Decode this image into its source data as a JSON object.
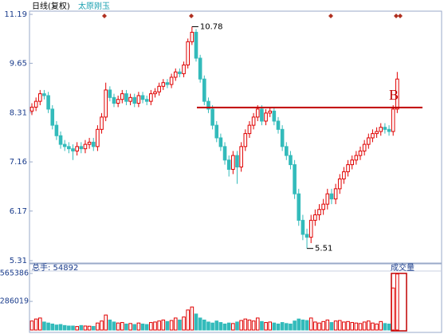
{
  "chart_data": [
    {
      "type": "candlestick",
      "title": "日线(复权)",
      "subtitle": "太原刚玉",
      "log_scale": true,
      "grid": false,
      "ylim": [
        5.31,
        11.19
      ],
      "yticks": [
        5.31,
        6.17,
        7.16,
        8.31,
        9.65,
        11.19
      ],
      "up_color": "#e00000",
      "down_color": "#33bbbb",
      "open": [
        8.35,
        8.45,
        8.6,
        8.8,
        8.75,
        8.4,
        8,
        7.75,
        7.55,
        7.5,
        7.45,
        7.4,
        7.5,
        7.45,
        7.55,
        7.6,
        7.5,
        7.9,
        8.2,
        8.9,
        8.7,
        8.55,
        8.65,
        8.8,
        8.6,
        8.7,
        8.55,
        8.75,
        8.65,
        8.6,
        8.8,
        8.85,
        9,
        9.1,
        9.05,
        9.25,
        9.4,
        9.35,
        9.6,
        10.3,
        10.6,
        9.8,
        9.2,
        8.6,
        8.4,
        8,
        7.7,
        7.5,
        7.2,
        7,
        7.3,
        7.05,
        7.5,
        7.8,
        8,
        8.2,
        8.4,
        8.1,
        8.3,
        8.35,
        8.1,
        7.9,
        7.5,
        7.3,
        7.1,
        6.5,
        6,
        5.75,
        5.7,
        6,
        6.1,
        6.2,
        6.3,
        6.5,
        6.4,
        6.6,
        6.8,
        6.95,
        7.1,
        7.2,
        7.3,
        7.4,
        7.55,
        7.7,
        7.8,
        7.85,
        7.95,
        7.9,
        7.85,
        8.4
      ],
      "high": [
        8.55,
        8.7,
        8.9,
        8.9,
        8.85,
        8.5,
        8.1,
        7.85,
        7.65,
        7.6,
        7.55,
        7.6,
        7.6,
        7.65,
        7.7,
        7.7,
        8,
        8.3,
        9.1,
        9,
        8.8,
        8.75,
        8.9,
        8.9,
        8.8,
        8.8,
        8.85,
        8.85,
        8.75,
        8.9,
        8.95,
        9.1,
        9.2,
        9.2,
        9.35,
        9.5,
        9.5,
        9.7,
        10.4,
        10.78,
        10.7,
        9.9,
        9.3,
        8.7,
        8.5,
        8.1,
        7.8,
        7.6,
        7.3,
        7.4,
        7.4,
        7.6,
        7.9,
        8.1,
        8.3,
        8.5,
        8.5,
        8.4,
        8.45,
        8.45,
        8.2,
        8,
        7.6,
        7.4,
        7.2,
        6.6,
        6.1,
        5.85,
        6.1,
        6.2,
        6.3,
        6.4,
        6.6,
        6.6,
        6.7,
        6.9,
        7.05,
        7.2,
        7.3,
        7.4,
        7.5,
        7.65,
        7.8,
        7.9,
        7.95,
        8.05,
        8.05,
        8,
        8.5,
        9.4
      ],
      "low": [
        8.25,
        8.35,
        8.5,
        8.65,
        8.3,
        7.9,
        7.65,
        7.45,
        7.4,
        7.35,
        7.2,
        7.3,
        7.35,
        7.35,
        7.45,
        7.4,
        7.4,
        7.8,
        8.1,
        8.6,
        8.45,
        8.45,
        8.55,
        8.5,
        8.5,
        8.45,
        8.45,
        8.55,
        8.5,
        8.5,
        8.7,
        8.75,
        8.9,
        8.95,
        8.95,
        9.15,
        9.25,
        9.25,
        9.5,
        10.2,
        9.7,
        9.1,
        8.5,
        8.3,
        7.9,
        7.6,
        7.4,
        7.1,
        6.85,
        6.9,
        6.7,
        6.95,
        7.4,
        7.7,
        7.9,
        8.1,
        8,
        8,
        8.2,
        8,
        7.8,
        7.4,
        7.2,
        7,
        6.4,
        5.9,
        5.65,
        5.51,
        5.6,
        5.9,
        6,
        6.1,
        6.2,
        6.3,
        6.3,
        6.5,
        6.7,
        6.85,
        7,
        7.1,
        7.2,
        7.3,
        7.45,
        7.6,
        7.7,
        7.75,
        7.8,
        7.75,
        7.75,
        8.3
      ],
      "close": [
        8.45,
        8.6,
        8.8,
        8.75,
        8.4,
        8,
        7.75,
        7.55,
        7.5,
        7.45,
        7.4,
        7.5,
        7.45,
        7.55,
        7.6,
        7.5,
        7.9,
        8.2,
        8.9,
        8.7,
        8.55,
        8.65,
        8.8,
        8.6,
        8.7,
        8.55,
        8.75,
        8.65,
        8.6,
        8.8,
        8.85,
        9,
        9.1,
        9.05,
        9.25,
        9.4,
        9.35,
        9.6,
        10.3,
        10.6,
        9.8,
        9.2,
        8.6,
        8.4,
        8,
        7.7,
        7.5,
        7.2,
        7,
        7.3,
        7.05,
        7.5,
        7.8,
        8,
        8.2,
        8.4,
        8.1,
        8.3,
        8.35,
        8.1,
        7.9,
        7.5,
        7.3,
        7.1,
        6.5,
        6,
        5.75,
        5.7,
        6,
        6.1,
        6.2,
        6.3,
        6.5,
        6.4,
        6.6,
        6.8,
        6.95,
        7.1,
        7.2,
        7.3,
        7.4,
        7.55,
        7.7,
        7.8,
        7.85,
        7.95,
        7.9,
        7.85,
        8.4,
        9.2
      ],
      "annotations": [
        {
          "text": "10.78",
          "value": 10.78,
          "index": 39
        },
        {
          "text": "5.51",
          "value": 5.51,
          "index": 67
        }
      ],
      "reference_line": {
        "label": "B",
        "value": 8.44,
        "color": "#c00000"
      }
    },
    {
      "type": "bar",
      "title": "总手: 54892",
      "subtitle": "成交量",
      "ylim": [
        0,
        565386
      ],
      "yticks": [
        286019,
        565386
      ],
      "values": [
        90000,
        110000,
        120000,
        80000,
        70000,
        60000,
        50000,
        55000,
        45000,
        40000,
        40000,
        35000,
        45000,
        40000,
        38000,
        36000,
        70000,
        90000,
        150000,
        100000,
        80000,
        70000,
        75000,
        60000,
        65000,
        55000,
        70000,
        60000,
        55000,
        75000,
        80000,
        90000,
        100000,
        85000,
        95000,
        120000,
        100000,
        130000,
        200000,
        230000,
        160000,
        120000,
        100000,
        80000,
        70000,
        90000,
        75000,
        60000,
        70000,
        65000,
        80000,
        95000,
        110000,
        100000,
        90000,
        120000,
        85000,
        75000,
        80000,
        70000,
        60000,
        75000,
        65000,
        60000,
        90000,
        110000,
        100000,
        95000,
        120000,
        80000,
        70000,
        85000,
        100000,
        75000,
        90000,
        95000,
        80000,
        85000,
        75000,
        70000,
        65000,
        80000,
        90000,
        70000,
        60000,
        85000,
        65000,
        60000,
        420000,
        560000
      ]
    }
  ]
}
